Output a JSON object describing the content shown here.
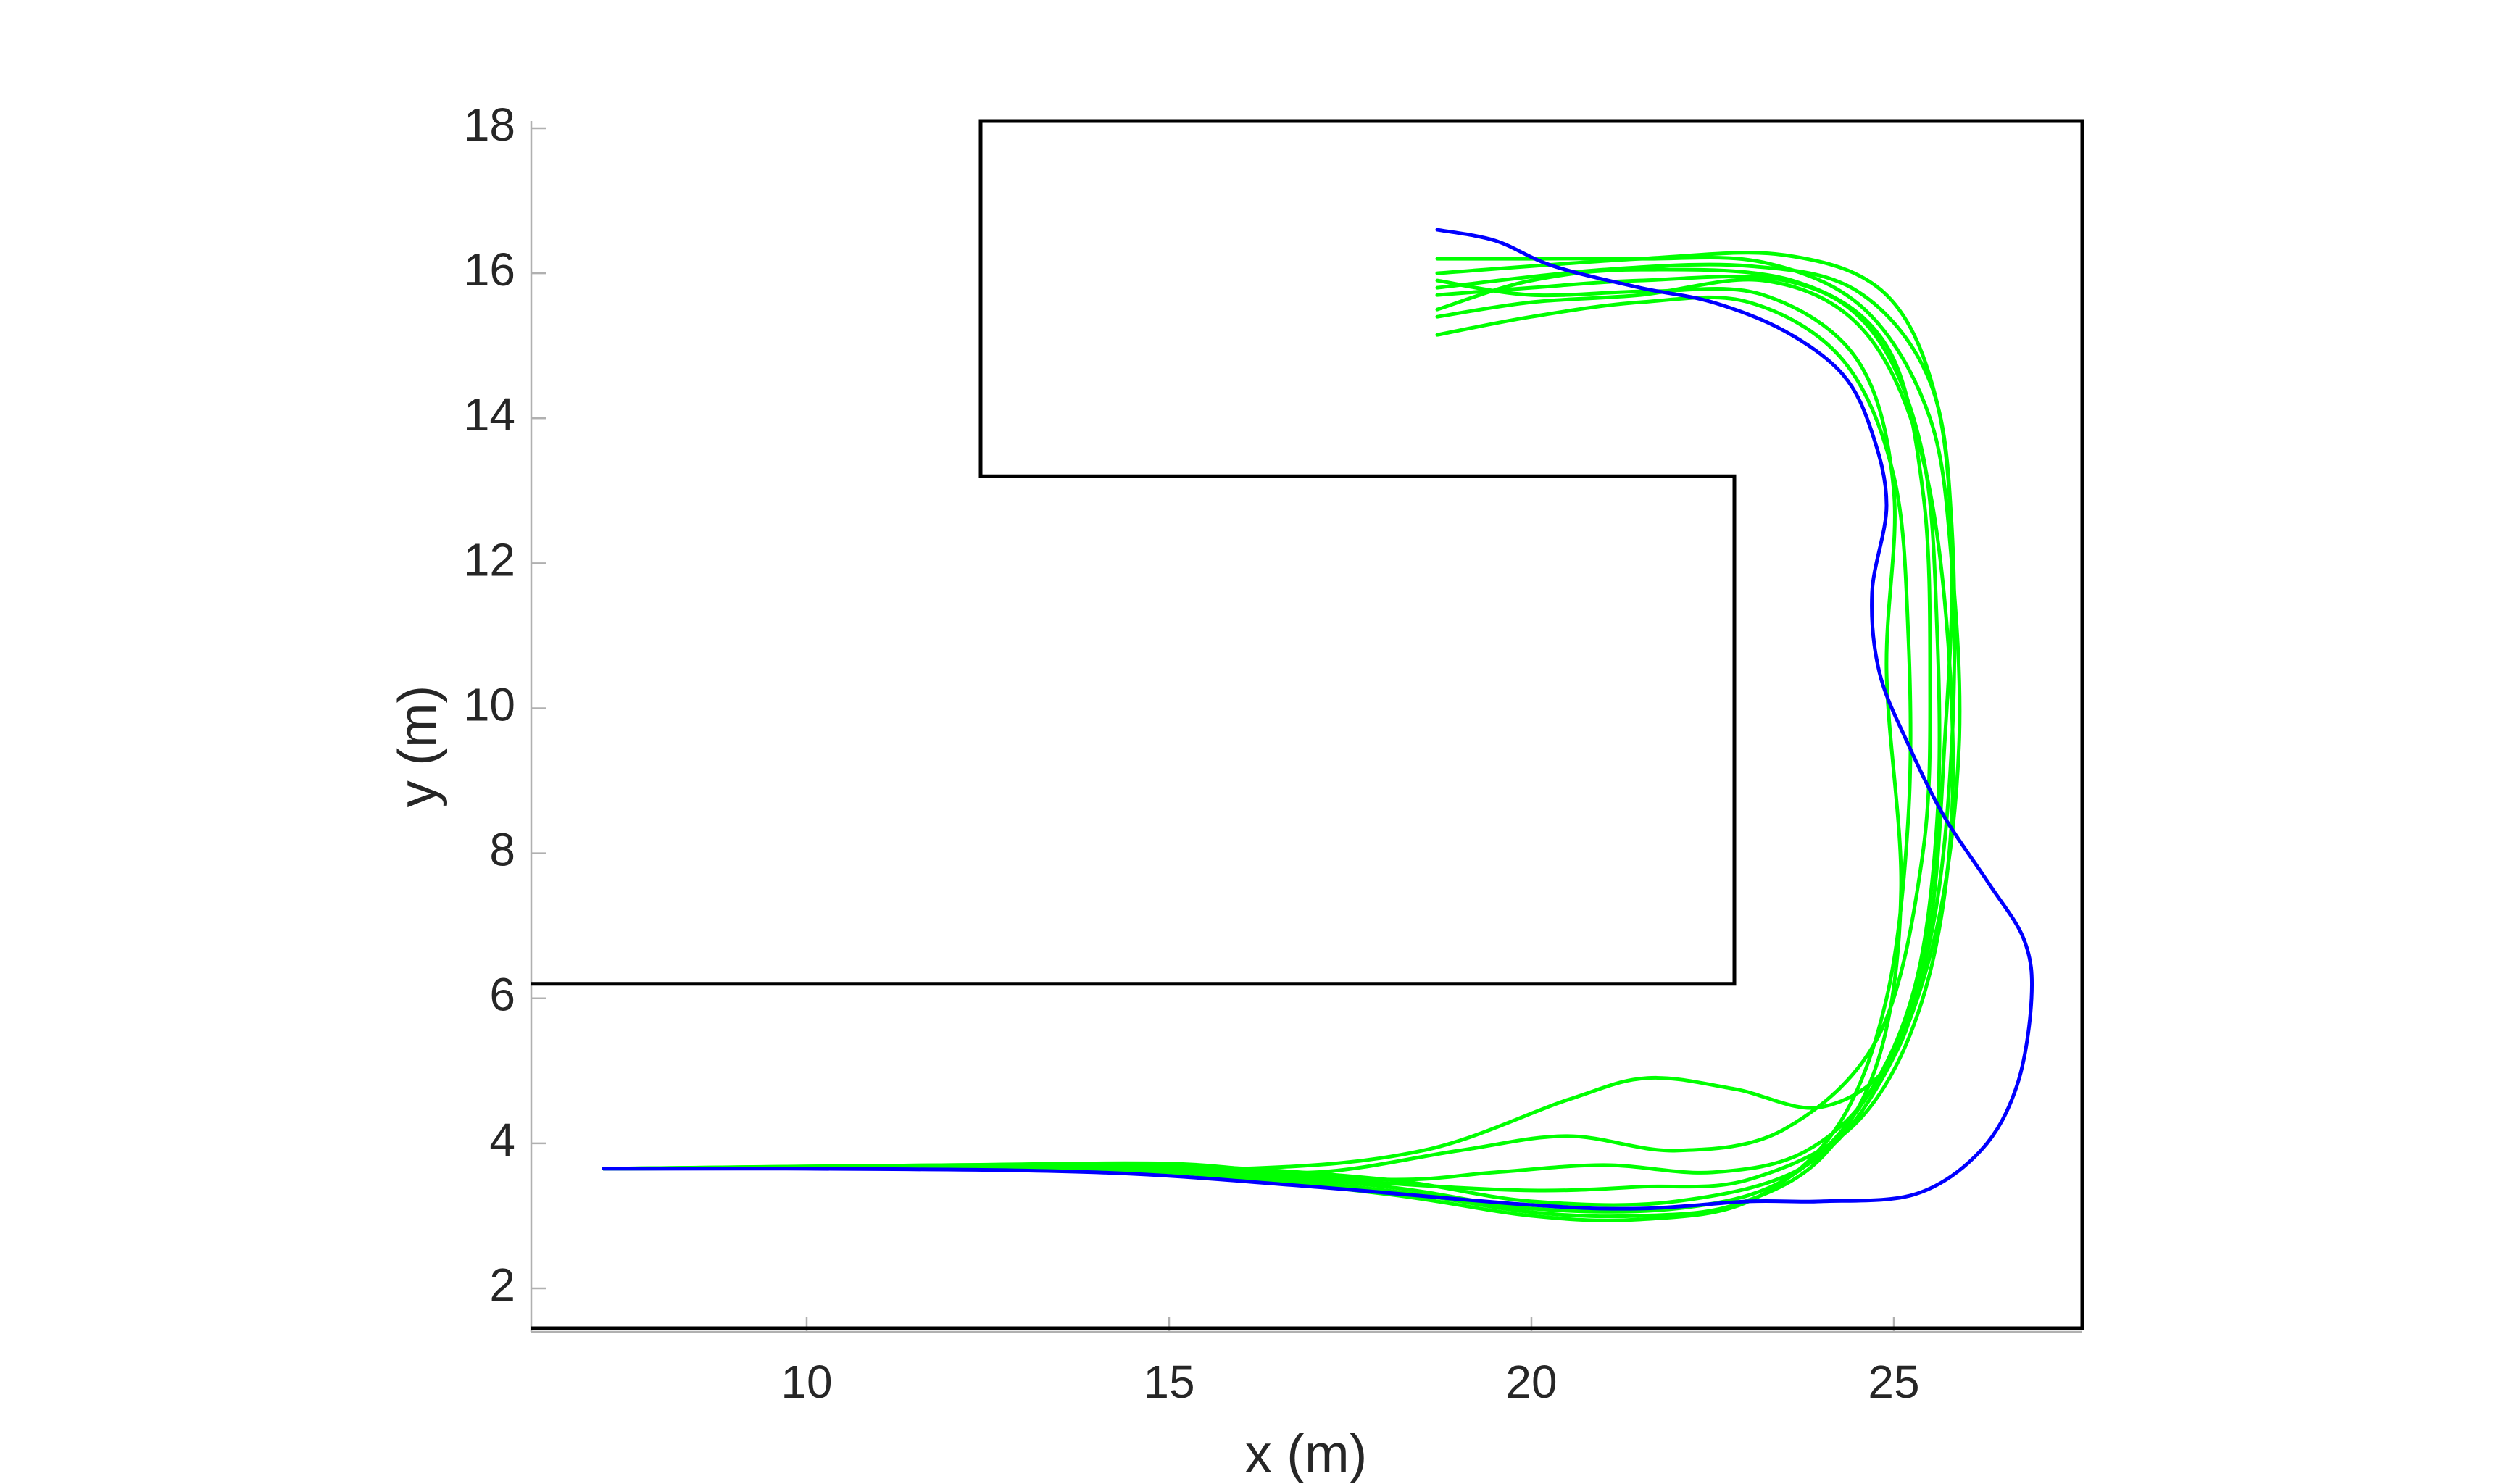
{
  "chart_data": {
    "type": "line",
    "xlabel": "x (m)",
    "ylabel": "y (m)",
    "xlim": [
      6.2,
      27.6
    ],
    "ylim": [
      1.4,
      18.1
    ],
    "xticks": [
      10,
      15,
      20,
      25
    ],
    "yticks": [
      2,
      4,
      6,
      8,
      10,
      12,
      14,
      16,
      18
    ],
    "walls": {
      "color": "#000000",
      "x": [
        6.2,
        27.6,
        27.6,
        12.4,
        12.4,
        22.8,
        22.8,
        6.2
      ],
      "y": [
        1.45,
        1.45,
        18.1,
        18.1,
        13.2,
        13.2,
        6.2,
        6.2
      ]
    },
    "series": [
      {
        "color": "#00ff00",
        "x": [
          7.2,
          12,
          15,
          18,
          20,
          22,
          23.5,
          24.6,
          25.3,
          25.6,
          25.6,
          25.4,
          24.7,
          23.5,
          21.5,
          20,
          18.7
        ],
        "values": [
          3.65,
          3.68,
          3.65,
          3.4,
          3.1,
          3.1,
          3.5,
          4.6,
          6.2,
          8.5,
          11,
          13.5,
          15.2,
          15.9,
          15.9,
          15.8,
          15.7
        ]
      },
      {
        "color": "#00ff00",
        "x": [
          7.2,
          12,
          15,
          18,
          20,
          22,
          23.8,
          24.9,
          25.6,
          25.9,
          25.8,
          25.5,
          24.6,
          23.2,
          21.5,
          20,
          18.7
        ],
        "values": [
          3.65,
          3.7,
          3.7,
          3.5,
          3.2,
          3.2,
          3.7,
          5,
          7,
          9.5,
          12,
          14,
          15.5,
          16.15,
          16.2,
          16.2,
          16.2
        ]
      },
      {
        "color": "#00ff00",
        "x": [
          7.2,
          12,
          15,
          18,
          20,
          21.5,
          23,
          24.2,
          24.9,
          25.2,
          25.2,
          25,
          24.3,
          23,
          21.5,
          20,
          18.7
        ],
        "values": [
          3.65,
          3.66,
          3.6,
          3.3,
          3.0,
          2.95,
          3.2,
          4.2,
          6,
          8.5,
          11,
          13.2,
          14.8,
          15.6,
          15.6,
          15.4,
          15.15
        ]
      },
      {
        "color": "#00ff00",
        "x": [
          7.2,
          12,
          16,
          18.5,
          20.5,
          21.6,
          22.8,
          24,
          25,
          25.5,
          25.7,
          25.8,
          25.6,
          24.9,
          23.5,
          21.5,
          18.7
        ],
        "values": [
          3.65,
          3.68,
          3.65,
          3.9,
          4.6,
          4.9,
          4.75,
          4.5,
          5.2,
          7,
          9.5,
          12,
          14.2,
          15.7,
          16.25,
          16.2,
          16.0
        ]
      },
      {
        "color": "#00ff00",
        "x": [
          7.2,
          12,
          15,
          17,
          19,
          20.5,
          22,
          23.5,
          24.8,
          25.4,
          25.5,
          25.4,
          24.9,
          23.6,
          21.5,
          20,
          18.7
        ],
        "values": [
          3.65,
          3.7,
          3.72,
          3.6,
          3.9,
          4.1,
          3.9,
          4.2,
          5.5,
          8,
          10.5,
          13,
          15,
          15.9,
          16.05,
          15.9,
          15.5
        ]
      },
      {
        "color": "#00ff00",
        "x": [
          7.2,
          12,
          15,
          18,
          20,
          21.5,
          22.8,
          24,
          24.8,
          25.1,
          24.9,
          25.0,
          24.5,
          23.2,
          21.6,
          20,
          18.7
        ],
        "values": [
          3.65,
          3.66,
          3.62,
          3.35,
          3.05,
          3.0,
          3.15,
          3.8,
          5.2,
          7.5,
          10.5,
          13,
          14.8,
          15.7,
          15.75,
          15.7,
          15.9
        ]
      },
      {
        "color": "#00ff00",
        "x": [
          7.2,
          12,
          15,
          18,
          20,
          21.5,
          23,
          24.5,
          25.4,
          25.8,
          25.7,
          25.3,
          24.5,
          23.2,
          21.5,
          20,
          18.7
        ],
        "values": [
          3.65,
          3.68,
          3.68,
          3.45,
          3.35,
          3.4,
          3.5,
          4.3,
          6,
          8.5,
          11.5,
          13.8,
          15.3,
          15.9,
          15.7,
          15.6,
          15.4
        ]
      },
      {
        "color": "#00ff00",
        "x": [
          7.2,
          12,
          15,
          18,
          19.5,
          21,
          22.5,
          23.8,
          24.8,
          25.5,
          25.8,
          25.8,
          25.5,
          24.5,
          23,
          21,
          18.7
        ],
        "values": [
          3.65,
          3.67,
          3.66,
          3.5,
          3.6,
          3.7,
          3.6,
          3.9,
          4.9,
          6.8,
          9.5,
          12.5,
          14.5,
          15.75,
          16.1,
          16.05,
          15.8
        ]
      },
      {
        "color": "#0000ff",
        "x": [
          7.2,
          10,
          14,
          17,
          20,
          21.5,
          23,
          24,
          25.3,
          26.2,
          26.7,
          26.9,
          26.8,
          26.3,
          25.7,
          25.2,
          24.8,
          24.7,
          24.9,
          24.7,
          24.3,
          23.5,
          22.5,
          21.5,
          20.3,
          19.5,
          18.7
        ],
        "values": [
          3.65,
          3.65,
          3.6,
          3.4,
          3.15,
          3.1,
          3.2,
          3.2,
          3.3,
          3.9,
          4.8,
          6.0,
          6.8,
          7.6,
          8.5,
          9.5,
          10.5,
          11.6,
          12.8,
          13.8,
          14.6,
          15.2,
          15.6,
          15.8,
          16.1,
          16.45,
          16.6
        ]
      }
    ]
  }
}
